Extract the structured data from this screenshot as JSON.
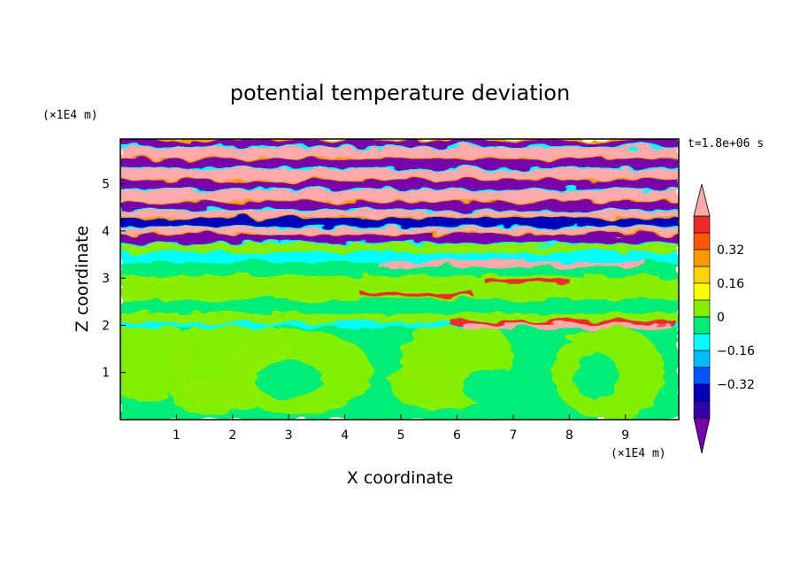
{
  "chart_data": {
    "type": "heatmap",
    "title": "potential temperature deviation",
    "xlabel": "X coordinate",
    "ylabel": "Z coordinate",
    "x_unit": "(×1E4 m)",
    "y_unit": "(×1E4 m)",
    "time_label": "t=1.8e+06 s",
    "xlim": [
      0,
      9.95
    ],
    "ylim": [
      0,
      5.95
    ],
    "x_ticks": [
      "1",
      "2",
      "3",
      "4",
      "5",
      "6",
      "7",
      "8",
      "9"
    ],
    "y_ticks": [
      "1",
      "2",
      "3",
      "4",
      "5"
    ],
    "colorbar": {
      "levels": [
        -0.48,
        -0.4,
        -0.32,
        -0.24,
        -0.16,
        -0.08,
        0,
        0.08,
        0.16,
        0.24,
        0.32,
        0.4,
        0.48
      ],
      "tick_labels": [
        "0.32",
        "0.16",
        "0",
        "−0.16",
        "−0.32"
      ],
      "tick_values": [
        0.32,
        0.16,
        0,
        -0.16,
        -0.32
      ],
      "colors_high_to_low": [
        "#ffaaaa",
        "#ee2a2a",
        "#ff5500",
        "#ff9900",
        "#ffd400",
        "#ffff00",
        "#88ee00",
        "#00ee77",
        "#00ffff",
        "#00bbff",
        "#0055ff",
        "#0000bb",
        "#3300aa",
        "#7700aa"
      ],
      "over_color": "#ffaaaa",
      "under_color": "#7700aa"
    },
    "regions": [
      {
        "z_range": [
          0,
          2.0
        ],
        "dominant_level": "0 to 0.08",
        "note": "light-green blobs on green background"
      },
      {
        "z_range": [
          2.0,
          3.5
        ],
        "dominant_level": "0 to 0.08",
        "note": "thin positive filaments"
      },
      {
        "z_range": [
          3.5,
          5.95
        ],
        "dominant_level": "alternating > 0.48 and < -0.48",
        "note": "layered bands"
      }
    ]
  }
}
